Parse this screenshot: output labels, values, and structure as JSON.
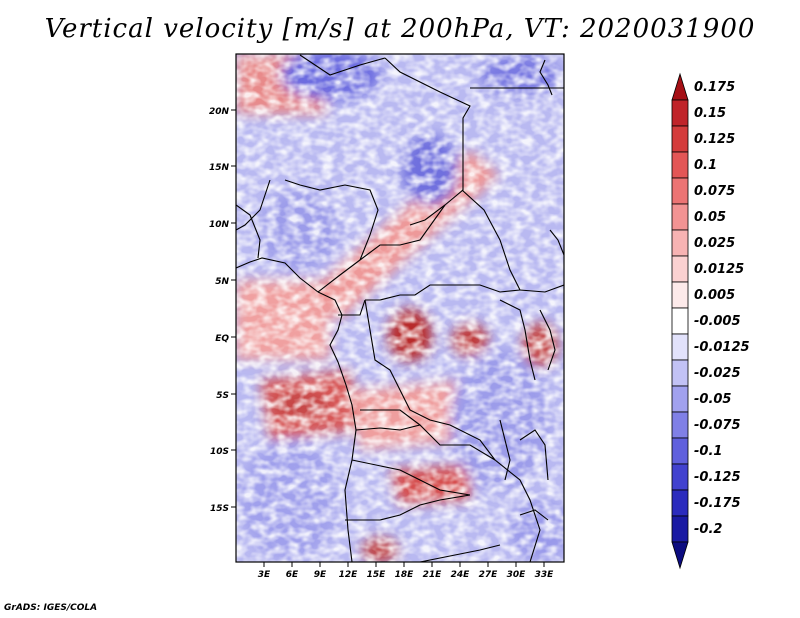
{
  "title": "Vertical velocity [m/s] at 200hPa, VT: 2020031900",
  "credit": "GrADS: IGES/COLA",
  "map": {
    "lat_labels": [
      "20N",
      "15N",
      "10N",
      "5N",
      "EQ",
      "5S",
      "10S",
      "15S"
    ],
    "lon_labels": [
      "3E",
      "6E",
      "9E",
      "12E",
      "15E",
      "18E",
      "21E",
      "24E",
      "27E",
      "30E",
      "33E"
    ]
  },
  "colorbar": {
    "labels": [
      "0.175",
      "0.15",
      "0.125",
      "0.1",
      "0.075",
      "0.05",
      "0.025",
      "0.0125",
      "0.005",
      "-0.005",
      "-0.0125",
      "-0.025",
      "-0.05",
      "-0.075",
      "-0.1",
      "-0.125",
      "-0.175",
      "-0.2"
    ],
    "colors": [
      "#a50f15",
      "#c0242a",
      "#d43c3c",
      "#e35656",
      "#ec7474",
      "#f29393",
      "#f7b3b3",
      "#fbd1d1",
      "#fdeaea",
      "#ffffff",
      "#e2e2fb",
      "#c2c2f5",
      "#a1a1ee",
      "#8080e6",
      "#6060dd",
      "#4242cf",
      "#2b2bbd",
      "#1a1aa3",
      "#0c0c80"
    ]
  }
}
